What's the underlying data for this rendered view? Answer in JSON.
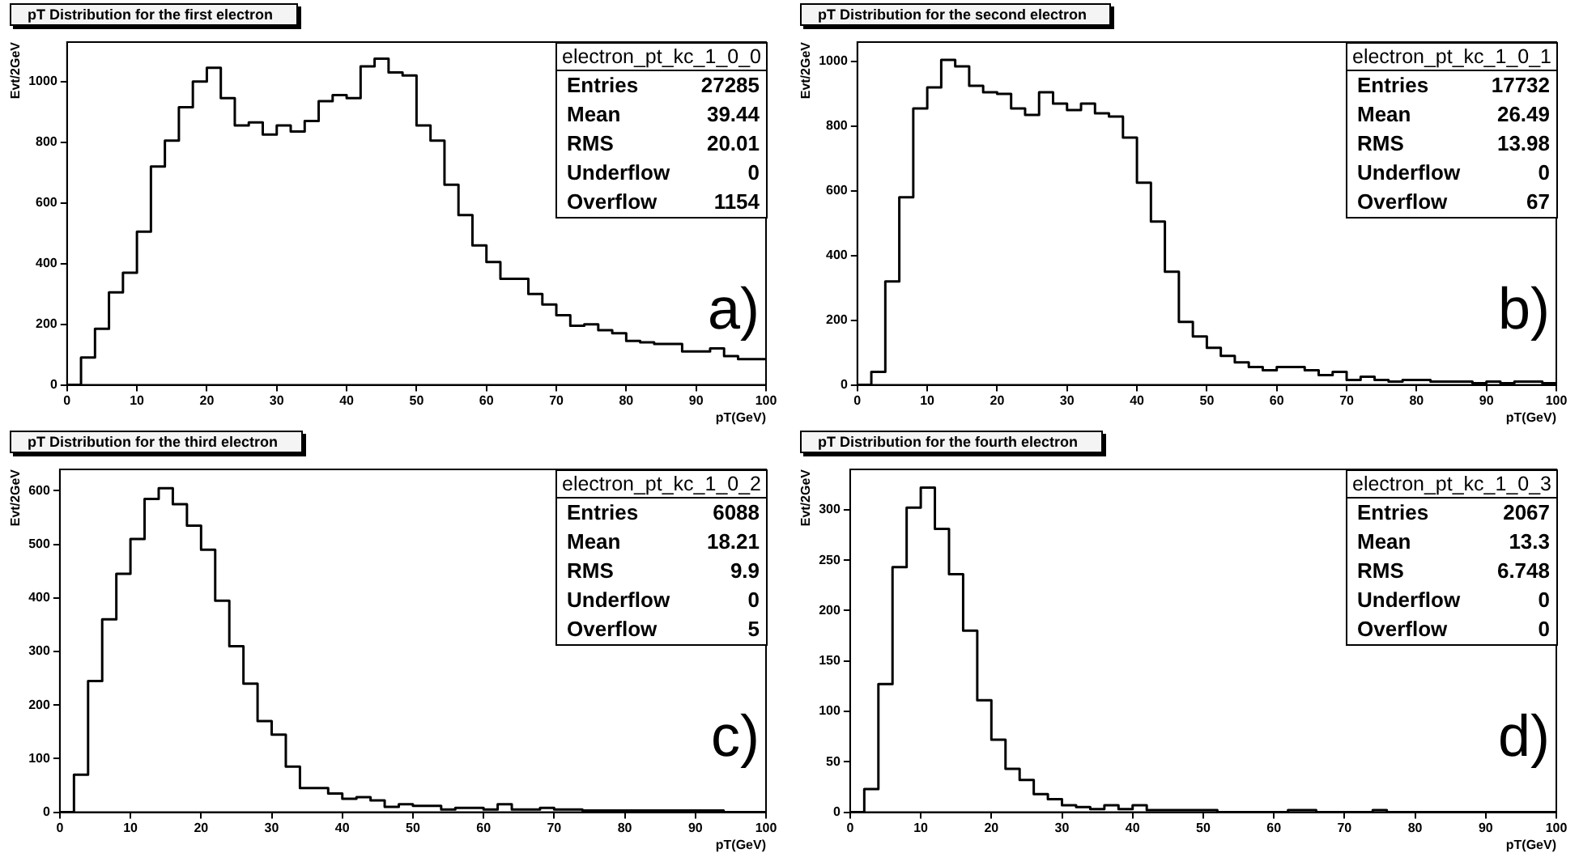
{
  "chart_data": [
    {
      "type": "histogram",
      "title": "pT Distribution for the first electron",
      "xlabel": "pT(GeV)",
      "ylabel": "Evt/2GeV",
      "color": "#000000",
      "grid": false,
      "bins": [
        0,
        2,
        4,
        6,
        8,
        10,
        12,
        14,
        16,
        18,
        20,
        22,
        24,
        26,
        28,
        30,
        32,
        34,
        36,
        38,
        40,
        42,
        44,
        46,
        48,
        50,
        52,
        54,
        56,
        58,
        60,
        62,
        64,
        66,
        68,
        70,
        72,
        74,
        76,
        78,
        80,
        82,
        84,
        86,
        88,
        90,
        92,
        94,
        96,
        98,
        100
      ],
      "values": [
        0,
        90,
        185,
        305,
        370,
        505,
        720,
        805,
        915,
        1000,
        1045,
        945,
        855,
        865,
        825,
        855,
        835,
        870,
        935,
        955,
        945,
        1050,
        1075,
        1030,
        1020,
        855,
        805,
        660,
        560,
        460,
        405,
        350,
        350,
        300,
        265,
        230,
        195,
        200,
        180,
        170,
        145,
        140,
        135,
        135,
        110,
        110,
        120,
        95,
        85,
        85
      ],
      "xlim": [
        0,
        100
      ],
      "xticks": [
        0,
        10,
        20,
        30,
        40,
        50,
        60,
        70,
        80,
        90,
        100
      ],
      "ylim": [
        0,
        1130
      ],
      "yticks": [
        0,
        200,
        400,
        600,
        800,
        1000
      ],
      "annotations": [
        "electron_pt_kc_1_0_0",
        "Entries",
        "27285",
        "Mean",
        "39.44",
        "RMS",
        "20.01",
        "Underflow",
        "0",
        "Overflow",
        "1154",
        "a)"
      ]
    },
    {
      "type": "histogram",
      "title": "pT Distribution for the second electron",
      "xlabel": "pT(GeV)",
      "ylabel": "Evt/2GeV",
      "color": "#000000",
      "grid": false,
      "bins": [
        0,
        2,
        4,
        6,
        8,
        10,
        12,
        14,
        16,
        18,
        20,
        22,
        24,
        26,
        28,
        30,
        32,
        34,
        36,
        38,
        40,
        42,
        44,
        46,
        48,
        50,
        52,
        54,
        56,
        58,
        60,
        62,
        64,
        66,
        68,
        70,
        72,
        74,
        76,
        78,
        80,
        82,
        84,
        86,
        88,
        90,
        92,
        94,
        96,
        98,
        100
      ],
      "values": [
        0,
        40,
        320,
        580,
        855,
        920,
        1005,
        985,
        925,
        905,
        900,
        855,
        835,
        905,
        870,
        850,
        870,
        840,
        830,
        765,
        625,
        505,
        350,
        195,
        150,
        115,
        90,
        70,
        55,
        45,
        55,
        55,
        45,
        30,
        40,
        15,
        25,
        15,
        10,
        15,
        15,
        10,
        10,
        10,
        5,
        10,
        5,
        10,
        10,
        5
      ],
      "xlim": [
        0,
        100
      ],
      "xticks": [
        0,
        10,
        20,
        30,
        40,
        50,
        60,
        70,
        80,
        90,
        100
      ],
      "ylim": [
        0,
        1060
      ],
      "yticks": [
        0,
        200,
        400,
        600,
        800,
        1000
      ],
      "annotations": [
        "electron_pt_kc_1_0_1",
        "Entries",
        "17732",
        "Mean",
        "26.49",
        "RMS",
        "13.98",
        "Underflow",
        "0",
        "Overflow",
        "67",
        "b)"
      ]
    },
    {
      "type": "histogram",
      "title": "pT Distribution for the third electron",
      "xlabel": "pT(GeV)",
      "ylabel": "Evt/2GeV",
      "color": "#000000",
      "grid": false,
      "bins": [
        0,
        2,
        4,
        6,
        8,
        10,
        12,
        14,
        16,
        18,
        20,
        22,
        24,
        26,
        28,
        30,
        32,
        34,
        36,
        38,
        40,
        42,
        44,
        46,
        48,
        50,
        52,
        54,
        56,
        58,
        60,
        62,
        64,
        66,
        68,
        70,
        72,
        74,
        76,
        78,
        80,
        82,
        84,
        86,
        88,
        90,
        92,
        94,
        96,
        98,
        100
      ],
      "values": [
        0,
        70,
        245,
        360,
        445,
        510,
        585,
        605,
        575,
        535,
        490,
        395,
        310,
        240,
        170,
        145,
        85,
        45,
        45,
        35,
        25,
        28,
        22,
        10,
        15,
        12,
        12,
        5,
        8,
        8,
        5,
        15,
        5,
        5,
        8,
        5,
        5,
        3,
        3,
        3,
        3,
        3,
        3,
        3,
        3,
        3,
        3,
        0,
        0,
        0
      ],
      "xlim": [
        0,
        100
      ],
      "xticks": [
        0,
        10,
        20,
        30,
        40,
        50,
        60,
        70,
        80,
        90,
        100
      ],
      "ylim": [
        0,
        640
      ],
      "yticks": [
        0,
        100,
        200,
        300,
        400,
        500,
        600
      ],
      "annotations": [
        "electron_pt_kc_1_0_2",
        "Entries",
        "6088",
        "Mean",
        "18.21",
        "RMS",
        "9.9",
        "Underflow",
        "0",
        "Overflow",
        "5",
        "c)"
      ]
    },
    {
      "type": "histogram",
      "title": "pT Distribution for the fourth electron",
      "xlabel": "pT(GeV)",
      "ylabel": "Evt/2GeV",
      "color": "#000000",
      "grid": false,
      "bins": [
        0,
        2,
        4,
        6,
        8,
        10,
        12,
        14,
        16,
        18,
        20,
        22,
        24,
        26,
        28,
        30,
        32,
        34,
        36,
        38,
        40,
        42,
        44,
        46,
        48,
        50,
        52,
        54,
        56,
        58,
        60,
        62,
        64,
        66,
        68,
        70,
        72,
        74,
        76,
        78,
        80,
        82,
        84,
        86,
        88,
        90,
        92,
        94,
        96,
        98,
        100
      ],
      "values": [
        0,
        23,
        127,
        243,
        302,
        322,
        281,
        236,
        180,
        111,
        72,
        43,
        32,
        18,
        13,
        7,
        5,
        3,
        7,
        3,
        7,
        2,
        2,
        2,
        2,
        2,
        0,
        0,
        0,
        0,
        0,
        2,
        2,
        0,
        0,
        0,
        0,
        2,
        0,
        0,
        0,
        0,
        0,
        0,
        0,
        0,
        0,
        0,
        0,
        0
      ],
      "xlim": [
        0,
        100
      ],
      "xticks": [
        0,
        10,
        20,
        30,
        40,
        50,
        60,
        70,
        80,
        90,
        100
      ],
      "ylim": [
        0,
        340
      ],
      "yticks": [
        0,
        50,
        100,
        150,
        200,
        250,
        300
      ],
      "annotations": [
        "electron_pt_kc_1_0_3",
        "Entries",
        "2067",
        "Mean",
        "13.3",
        "RMS",
        "6.748",
        "Underflow",
        "0",
        "Overflow",
        "0",
        "d)"
      ]
    }
  ]
}
